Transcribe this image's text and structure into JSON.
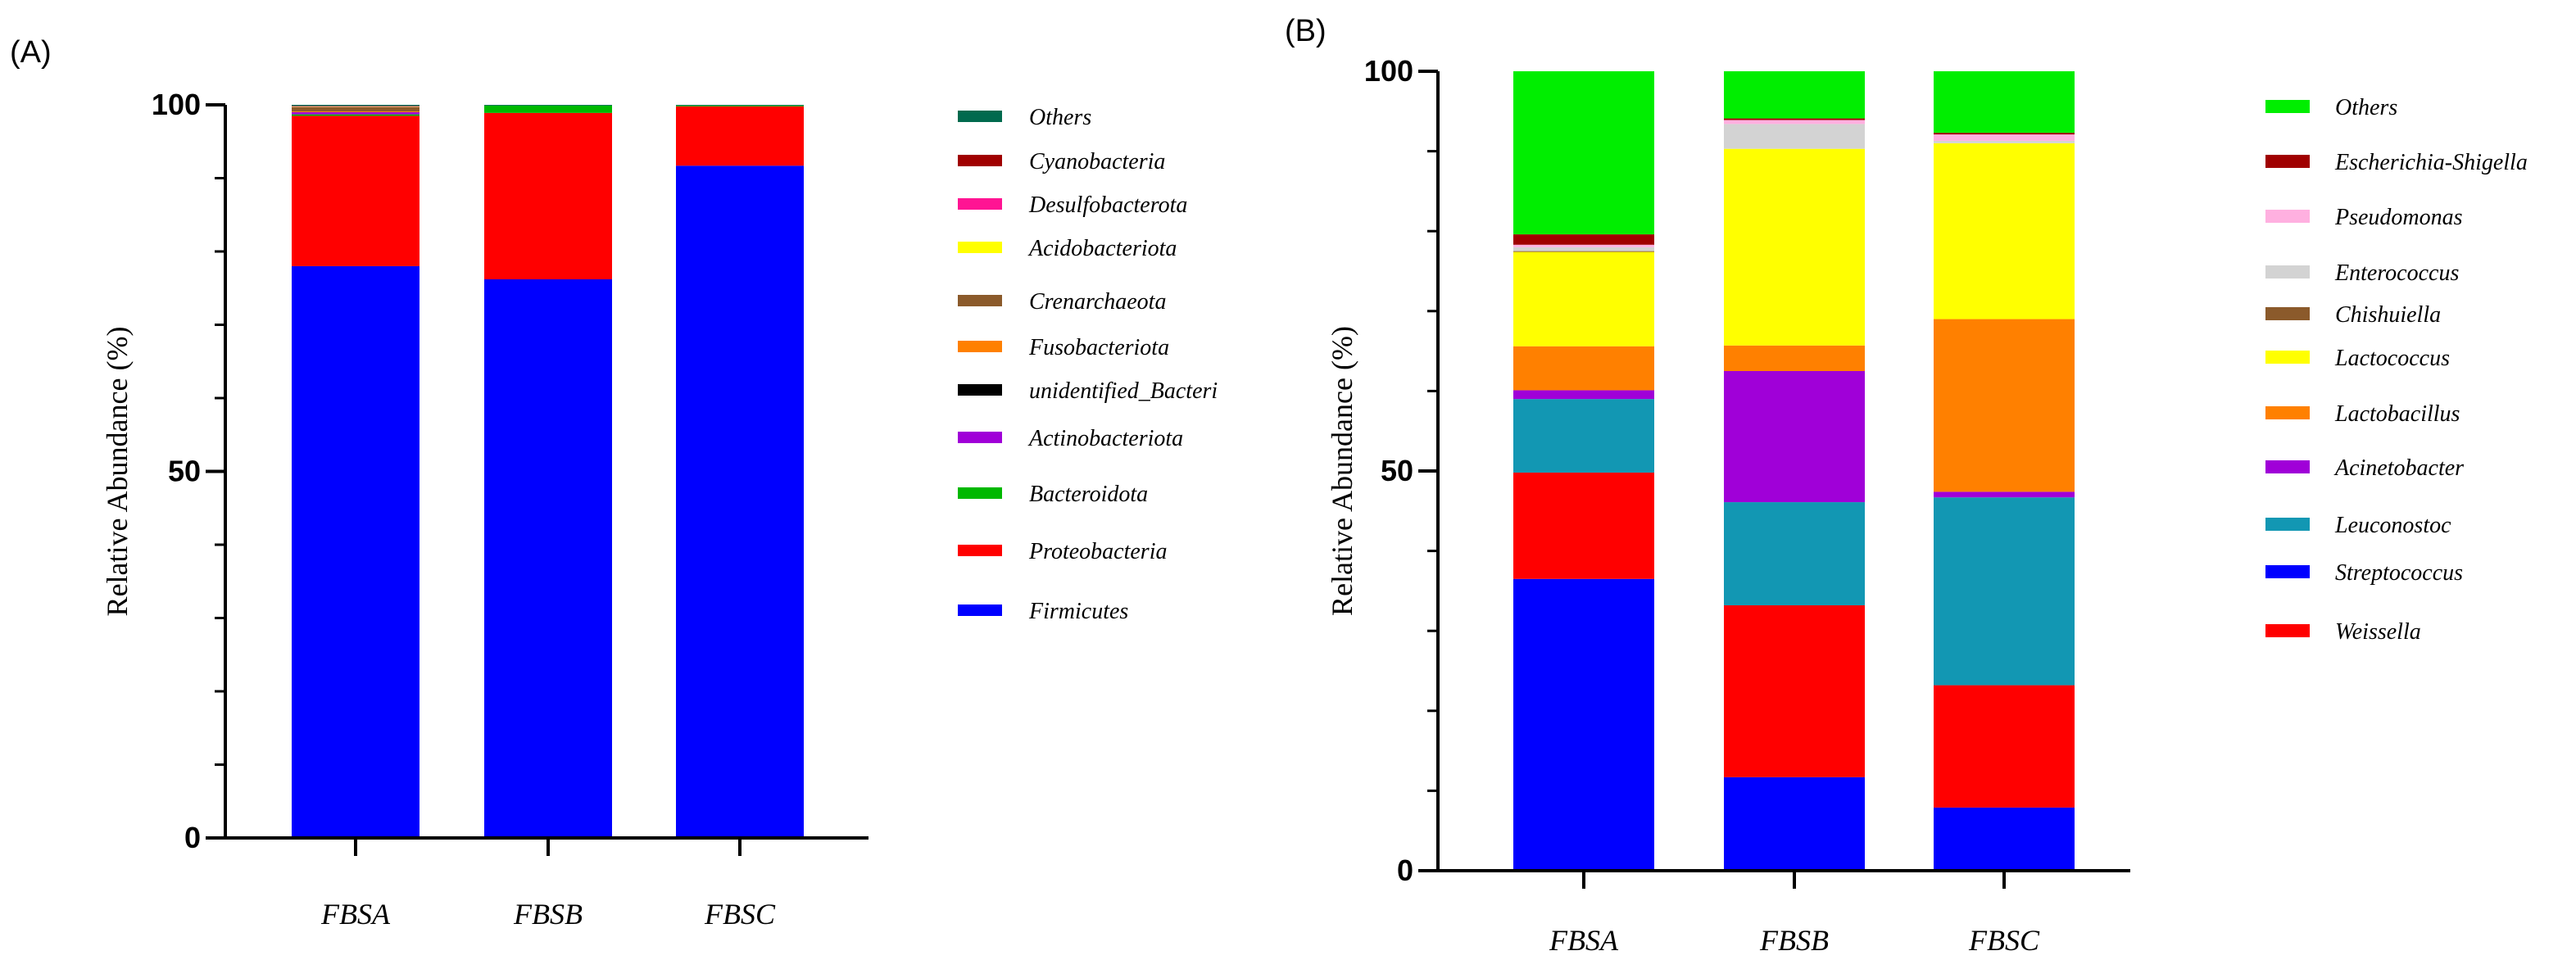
{
  "chart_data": [
    {
      "panel": "(A)",
      "type": "bar",
      "stacked": true,
      "ylabel": "Relative Abundance (%)",
      "xlabel": "",
      "ylim": [
        0,
        100
      ],
      "yticks": [
        "0",
        "50",
        "100"
      ],
      "categories": [
        "FBSA",
        "FBSB",
        "FBSC"
      ],
      "legend_position": "right",
      "series": [
        {
          "name": "Firmicutes",
          "color": "#0000ff",
          "values": [
            78.0,
            76.2,
            91.7
          ]
        },
        {
          "name": "Proteobacteria",
          "color": "#ff0000",
          "values": [
            20.5,
            22.7,
            8.1
          ]
        },
        {
          "name": "Bacteroidota",
          "color": "#00b800",
          "values": [
            0.2,
            1.0,
            0.1
          ]
        },
        {
          "name": "Actinobacteriota",
          "color": "#a000d8",
          "values": [
            0.3,
            0.0,
            0.0
          ]
        },
        {
          "name": "unidentified_Bacteri",
          "color": "#000000",
          "values": [
            0.0,
            0.0,
            0.0
          ]
        },
        {
          "name": "Fusobacteriota",
          "color": "#ff8000",
          "values": [
            0.1,
            0.0,
            0.0
          ]
        },
        {
          "name": "Crenarchaeota",
          "color": "#8b5a2b",
          "values": [
            0.6,
            0.0,
            0.0
          ]
        },
        {
          "name": "Acidobacteriota",
          "color": "#ffff00",
          "values": [
            0.05,
            0.0,
            0.0
          ]
        },
        {
          "name": "Desulfobacterota",
          "color": "#ff1493",
          "values": [
            0.05,
            0.0,
            0.0
          ]
        },
        {
          "name": "Cyanobacteria",
          "color": "#a00000",
          "values": [
            0.05,
            0.0,
            0.0
          ]
        },
        {
          "name": "Others",
          "color": "#006a4e",
          "values": [
            0.15,
            0.1,
            0.1
          ]
        }
      ]
    },
    {
      "panel": "(B)",
      "type": "bar",
      "stacked": true,
      "ylabel": "Relative Abundance (%)",
      "xlabel": "",
      "ylim": [
        0,
        100
      ],
      "yticks": [
        "0",
        "50",
        "100"
      ],
      "categories": [
        "FBSA",
        "FBSB",
        "FBSC"
      ],
      "legend_position": "right",
      "series": [
        {
          "name": "Streptococcus",
          "color": "#0000ff",
          "values": [
            36.5,
            11.7,
            7.9
          ]
        },
        {
          "name": "Weissella",
          "color": "#ff0000",
          "values": [
            13.3,
            21.5,
            15.3
          ]
        },
        {
          "name": "Leuconostoc",
          "color": "#1297b3",
          "values": [
            9.2,
            12.9,
            23.5
          ]
        },
        {
          "name": "Acinetobacter",
          "color": "#a000d8",
          "values": [
            1.1,
            16.4,
            0.7
          ]
        },
        {
          "name": "Lactobacillus",
          "color": "#ff8000",
          "values": [
            5.5,
            3.2,
            21.6
          ]
        },
        {
          "name": "Lactococcus",
          "color": "#ffff00",
          "values": [
            11.8,
            24.6,
            22.0
          ]
        },
        {
          "name": "Chishuiella",
          "color": "#8b5a2b",
          "values": [
            0.1,
            0.0,
            0.0
          ]
        },
        {
          "name": "Enterococcus",
          "color": "#d3d3d3",
          "values": [
            0.5,
            3.1,
            0.3
          ]
        },
        {
          "name": "Pseudomonas",
          "color": "#ffb0e0",
          "values": [
            0.3,
            0.5,
            0.8
          ]
        },
        {
          "name": "Escherichia-Shigella",
          "color": "#a00000",
          "values": [
            1.3,
            0.2,
            0.2
          ]
        },
        {
          "name": "Others",
          "color": "#00ee00",
          "values": [
            20.4,
            5.9,
            7.7
          ]
        }
      ]
    }
  ]
}
